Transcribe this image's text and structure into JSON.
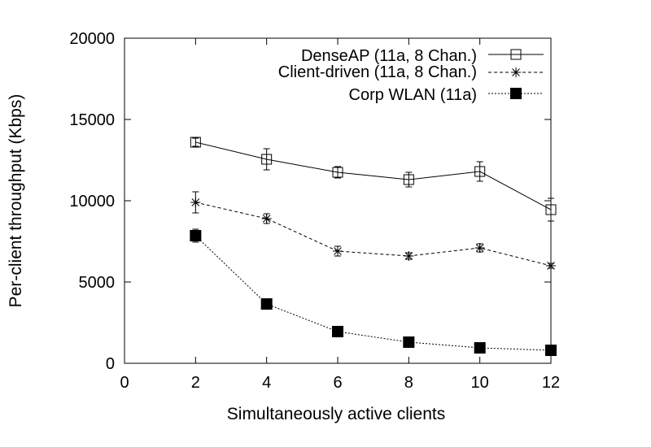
{
  "chart_data": {
    "type": "line",
    "xlabel": "Simultaneously active clients",
    "ylabel": "Per-client throughput (Kbps)",
    "xlim": [
      0,
      12
    ],
    "ylim": [
      0,
      20000
    ],
    "xticks": [
      "0",
      "2",
      "4",
      "6",
      "8",
      "10",
      "12"
    ],
    "yticks": [
      "0",
      "5000",
      "10000",
      "15000",
      "20000"
    ],
    "grid": false,
    "legend_position": "top-right",
    "x": [
      2,
      4,
      6,
      8,
      10,
      12
    ],
    "series": [
      {
        "name": "DenseAP (11a, 8 Chan.)",
        "marker": "open-square",
        "line_style": "solid",
        "values": [
          13600,
          12550,
          11750,
          11300,
          11800,
          9450
        ],
        "error": [
          250,
          650,
          350,
          450,
          600,
          700
        ]
      },
      {
        "name": "Client-driven (11a, 8 Chan.)",
        "marker": "asterisk",
        "line_style": "dashed",
        "values": [
          9900,
          8900,
          6900,
          6600,
          7100,
          6000
        ],
        "error": [
          650,
          300,
          300,
          200,
          250,
          150
        ]
      },
      {
        "name": "Corp WLAN (11a)",
        "marker": "filled-square",
        "line_style": "dotted",
        "values": [
          7850,
          3650,
          1950,
          1300,
          950,
          800
        ],
        "error": [
          400,
          150,
          100,
          100,
          80,
          80
        ]
      }
    ]
  }
}
